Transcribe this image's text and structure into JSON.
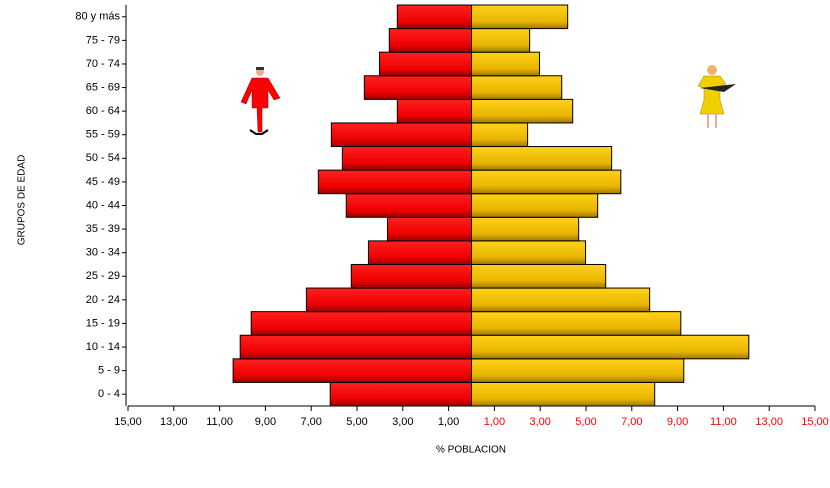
{
  "chart_data": {
    "type": "pyramid",
    "xlabel": "% POBLACION",
    "ylabel": "GRUPOS DE EDAD",
    "categories": [
      "0 - 4",
      "5 - 9",
      "10 - 14",
      "15 - 19",
      "20 - 24",
      "25 - 29",
      "30 - 34",
      "35 - 39",
      "40 - 44",
      "45 - 49",
      "50 - 54",
      "55 - 59",
      "60 - 64",
      "65 - 69",
      "70 - 74",
      "75 - 79",
      "80 y más"
    ],
    "series": [
      {
        "color": "#ff0000",
        "values": [
          6.17,
          10.41,
          10.1,
          9.62,
          7.21,
          5.25,
          4.5,
          3.67,
          5.47,
          6.69,
          5.64,
          6.12,
          3.24,
          4.68,
          4.02,
          3.59,
          3.24
        ]
      },
      {
        "color": "#f0c000",
        "values": [
          8.0,
          9.27,
          12.11,
          9.14,
          7.78,
          5.86,
          4.98,
          4.68,
          5.51,
          6.52,
          6.12,
          2.45,
          4.42,
          3.94,
          2.97,
          2.54,
          4.2
        ]
      }
    ],
    "xlim": [
      -15,
      15
    ],
    "xticks": [
      {
        "value": -15,
        "label": "15,00"
      },
      {
        "value": -13,
        "label": "13,00"
      },
      {
        "value": -11,
        "label": "11,00"
      },
      {
        "value": -9,
        "label": "9,00"
      },
      {
        "value": -7,
        "label": "7,00"
      },
      {
        "value": -5,
        "label": "5,00"
      },
      {
        "value": -3,
        "label": "3,00"
      },
      {
        "value": -1,
        "label": "1,00"
      },
      {
        "value": 1,
        "label": "1,00"
      },
      {
        "value": 3,
        "label": "3,00"
      },
      {
        "value": 5,
        "label": "5,00"
      },
      {
        "value": 7,
        "label": "7,00"
      },
      {
        "value": 9,
        "label": "9,00"
      },
      {
        "value": 11,
        "label": "11,00"
      },
      {
        "value": 13,
        "label": "13,00"
      },
      {
        "value": 15,
        "label": "15,00"
      }
    ],
    "positive_tick_color": "#ff0000"
  }
}
